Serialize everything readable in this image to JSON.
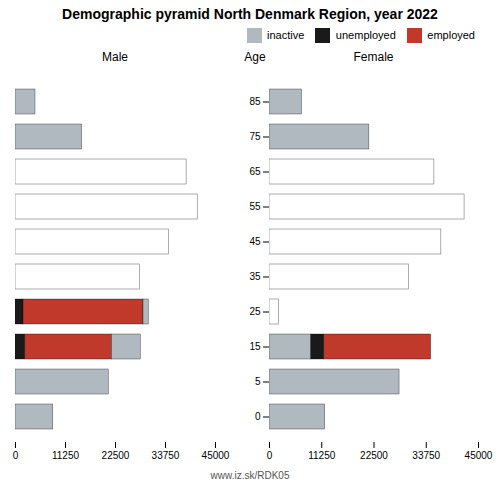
{
  "chart_data": {
    "type": "bar",
    "title": "Demographic pyramid North Denmark Region, year 2022",
    "orientation": "horizontal",
    "stacked": true,
    "ylabel": "Age",
    "annotations": [
      "www.iz.sk/RDK05"
    ],
    "categories": [
      "85",
      "75",
      "65",
      "55",
      "45",
      "35",
      "25",
      "15",
      "5",
      "0"
    ],
    "panels": [
      {
        "xlabel": "Male",
        "xlim": [
          0,
          45000
        ],
        "xticks": [
          0,
          11250,
          22500,
          33750,
          45000
        ],
        "tick_labels": "x",
        "series": [
          {
            "name": "unemployed",
            "color": "#1a1a1a",
            "values": [
              0,
              0,
              0,
              0,
              0,
              0,
              1800,
              2200,
              0,
              0
            ]
          },
          {
            "name": "employed",
            "color": "#c0392b",
            "values": [
              0,
              0,
              0,
              0,
              0,
              0,
              27000,
              19500,
              0,
              0
            ]
          },
          {
            "name": "inactive",
            "color": "#b0b8c0",
            "colors": [
              "#b0b8c0",
              "#b0b8c0",
              "white",
              "white",
              "white",
              "white",
              "#b0b8c0",
              "#b0b8c0",
              "#b0b8c0",
              "#b0b8c0"
            ],
            "values": [
              4500,
              15000,
              38500,
              41000,
              34500,
              28000,
              1200,
              6500,
              21000,
              8500
            ]
          }
        ]
      },
      {
        "xlabel": "Female",
        "xlim": [
          0,
          45000
        ],
        "xticks": [
          0,
          11250,
          22500,
          33750,
          45000
        ],
        "legend": "upper right",
        "series": [
          {
            "name": "inactive",
            "color": "#b0b8c0",
            "colors": [
              "#b0b8c0",
              "#b0b8c0",
              "white",
              "white",
              "white",
              "white",
              "white",
              "#b0b8c0",
              "#b0b8c0",
              "#b0b8c0"
            ],
            "values": [
              7000,
              21500,
              35500,
              42000,
              37000,
              30000,
              2000,
              9000,
              28000,
              12000
            ]
          },
          {
            "name": "unemployed",
            "color": "#1a1a1a",
            "values": [
              0,
              0,
              0,
              0,
              0,
              0,
              0,
              2800,
              0,
              0
            ]
          },
          {
            "name": "employed",
            "color": "#c0392b",
            "values": [
              0,
              0,
              0,
              0,
              0,
              0,
              0,
              23000,
              0,
              0
            ]
          }
        ]
      }
    ]
  }
}
